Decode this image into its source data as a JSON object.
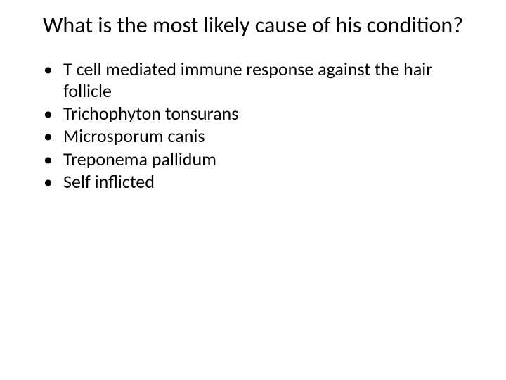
{
  "title": "What is the most likely cause of his condition?",
  "bullets": [
    "T cell mediated immune response against the hair follicle",
    "Trichophyton tonsurans",
    "Microsporum canis",
    "Treponema pallidum",
    "Self inflicted"
  ],
  "colors": {
    "background": "#ffffff",
    "text": "#000000"
  },
  "typography": {
    "title_fontsize": 32,
    "body_fontsize": 26,
    "font_family": "Calibri"
  }
}
